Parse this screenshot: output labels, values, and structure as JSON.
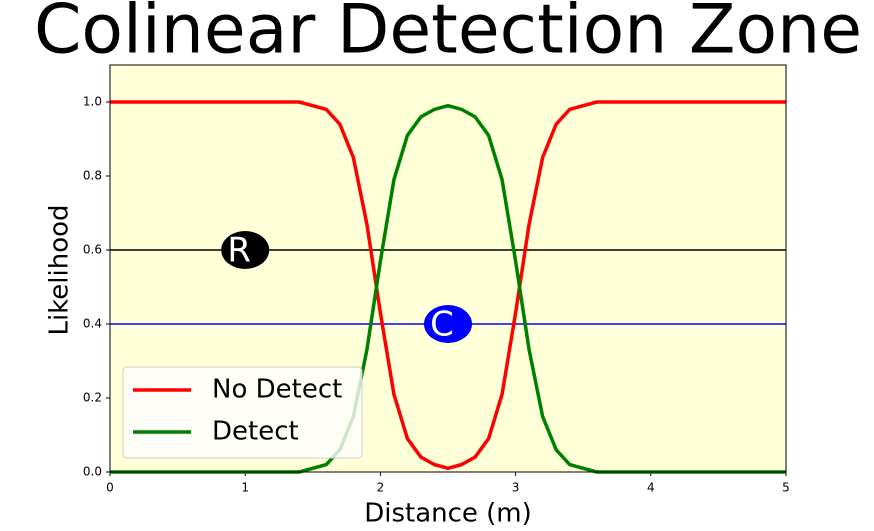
{
  "chart_data": {
    "type": "line",
    "title": "Colinear Detection Zone",
    "x_label": "Distance (m)",
    "y_label": "Likelihood",
    "x": [
      0,
      0.1,
      0.2,
      0.3,
      0.4,
      0.5,
      0.6,
      0.7,
      0.8,
      0.9,
      1,
      1.1,
      1.2,
      1.3,
      1.4,
      1.5,
      1.6,
      1.7,
      1.8,
      1.9,
      2,
      2.1,
      2.2,
      2.3,
      2.4,
      2.5,
      2.6,
      2.7,
      2.8,
      2.9,
      3,
      3.1,
      3.2,
      3.3,
      3.4,
      3.5,
      3.6,
      3.7,
      3.8,
      3.9,
      4,
      4.1,
      4.2,
      4.3,
      4.4,
      4.5,
      4.6,
      4.7,
      4.8,
      4.9,
      5
    ],
    "series": [
      {
        "name": "No Detect",
        "color": "#ff0000",
        "values": [
          1,
          1,
          1,
          1,
          1,
          1,
          1,
          1,
          1,
          1,
          1,
          1,
          1,
          1,
          1,
          0.99,
          0.98,
          0.94,
          0.85,
          0.67,
          0.43,
          0.21,
          0.09,
          0.04,
          0.02,
          0.01,
          0.02,
          0.04,
          0.09,
          0.21,
          0.43,
          0.67,
          0.85,
          0.94,
          0.98,
          0.99,
          1,
          1,
          1,
          1,
          1,
          1,
          1,
          1,
          1,
          1,
          1,
          1,
          1,
          1,
          1
        ]
      },
      {
        "name": "Detect",
        "color": "#008000",
        "values": [
          0,
          0,
          0,
          0,
          0,
          0,
          0,
          0,
          0,
          0,
          0,
          0,
          0,
          0,
          0,
          0.01,
          0.02,
          0.06,
          0.15,
          0.33,
          0.57,
          0.79,
          0.91,
          0.96,
          0.98,
          0.99,
          0.98,
          0.96,
          0.91,
          0.79,
          0.57,
          0.33,
          0.15,
          0.06,
          0.02,
          0.01,
          0,
          0,
          0,
          0,
          0,
          0,
          0,
          0,
          0,
          0,
          0,
          0,
          0,
          0,
          0
        ]
      }
    ],
    "hlines": [
      {
        "y": 0.6,
        "color": "#000000",
        "label": "R",
        "x": 1
      },
      {
        "y": 0.4,
        "color": "#0000ff",
        "label": "C",
        "x": 2.5
      }
    ],
    "xlim": [
      0,
      5
    ],
    "ylim": [
      0,
      1.1
    ],
    "xticks": [
      0,
      1,
      2,
      3,
      4,
      5
    ],
    "yticks": [
      {
        "value": 0,
        "label": "0.0"
      },
      {
        "value": 0.2,
        "label": "0.2"
      },
      {
        "value": 0.4,
        "label": "0.4"
      },
      {
        "value": 0.6,
        "label": "0.6"
      },
      {
        "value": 0.8,
        "label": "0.8"
      },
      {
        "value": 1,
        "label": "1.0"
      }
    ],
    "legend": "lower left",
    "plot_background": "#ffffd8"
  }
}
